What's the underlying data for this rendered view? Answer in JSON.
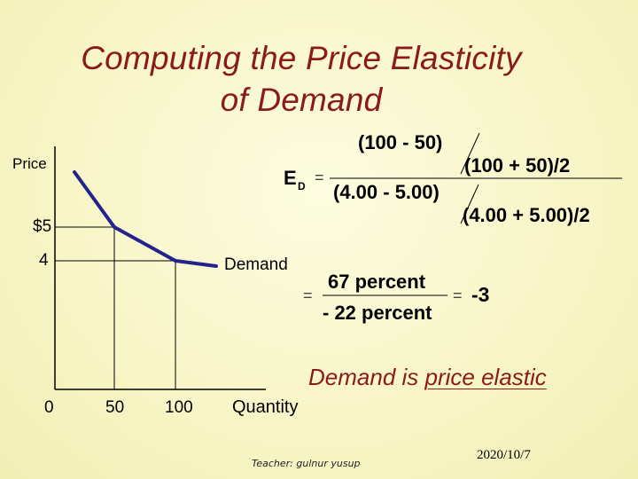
{
  "title_line1": "Computing the Price Elasticity",
  "title_line2": "of Demand",
  "graph": {
    "y_axis_label": "Price",
    "y_ticks": [
      "$5",
      "4"
    ],
    "x_ticks": [
      "0",
      "50",
      "100"
    ],
    "x_axis_label": "Quantity",
    "curve_label": "Demand"
  },
  "formula": {
    "symbol": "E",
    "subscript": "D",
    "equals": "=",
    "num_top": "(100 - 50)",
    "num_bottom": "(100 + 50)/2",
    "den_top": "(4.00 - 5.00)",
    "den_bottom": "(4.00 + 5.00)/2",
    "pct_top": "67 percent",
    "pct_bottom": "- 22 percent",
    "result": "-3"
  },
  "conclusion_prefix": "Demand is ",
  "conclusion_emphasis": "price elastic",
  "footer": {
    "teacher": "Teacher: gulnur  yusup",
    "date": "2020/10/7"
  },
  "colors": {
    "title": "#8b1a1a",
    "background": "#fcfad8",
    "curve": "#23238e"
  }
}
